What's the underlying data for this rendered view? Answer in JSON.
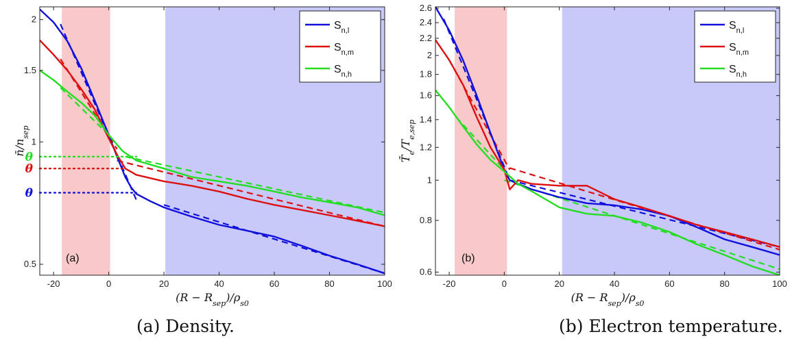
{
  "chart_data": [
    {
      "id": "a",
      "type": "line",
      "panel_label": "(a)",
      "caption": "(a) Density.",
      "xlabel": "(R − R_sep)/ρ_s0",
      "ylabel": "n̄/n_sep",
      "yscale": "log",
      "xlim": [
        -25,
        100
      ],
      "ylim": [
        0.47,
        2.15
      ],
      "xticks": [
        -20,
        0,
        20,
        40,
        60,
        80,
        100
      ],
      "xtick_labels": [
        "-20",
        "0",
        "20",
        "40",
        "60",
        "80",
        "100"
      ],
      "yticks": [
        0.5,
        1,
        1.5,
        2
      ],
      "ytick_labels": [
        "0.5",
        "1",
        "1.5",
        "2"
      ],
      "shaded_regions": [
        {
          "x": [
            -17,
            0.5
          ],
          "color": "#f9c9c9"
        },
        {
          "x": [
            20.5,
            100
          ],
          "color": "#c9c9f9"
        }
      ],
      "legend": {
        "position": "top-right",
        "entries": [
          "S_n,l",
          "S_n,m",
          "S_n,h"
        ]
      },
      "series": [
        {
          "name": "S_n,l",
          "color": "#1010dd",
          "x": [
            -25,
            -20,
            -15,
            -10,
            -5,
            0,
            3,
            6,
            8,
            10,
            15,
            20,
            30,
            40,
            50,
            60,
            70,
            80,
            90,
            100
          ],
          "y": [
            2.12,
            1.97,
            1.77,
            1.52,
            1.26,
            1.04,
            0.92,
            0.82,
            0.775,
            0.745,
            0.715,
            0.69,
            0.655,
            0.625,
            0.605,
            0.585,
            0.555,
            0.525,
            0.5,
            0.475
          ]
        },
        {
          "name": "S_n,m",
          "color": "#dd1010",
          "x": [
            -25,
            -20,
            -15,
            -10,
            -5,
            0,
            3,
            6,
            10,
            20,
            30,
            40,
            50,
            60,
            70,
            80,
            90,
            100
          ],
          "y": [
            1.78,
            1.64,
            1.5,
            1.35,
            1.2,
            1.02,
            0.93,
            0.86,
            0.83,
            0.8,
            0.78,
            0.755,
            0.725,
            0.7,
            0.68,
            0.66,
            0.64,
            0.62
          ]
        },
        {
          "name": "S_n,h",
          "color": "#22dd22",
          "x": [
            -25,
            -20,
            -15,
            -10,
            -5,
            0,
            5,
            10,
            20,
            30,
            40,
            50,
            60,
            70,
            80,
            90,
            100
          ],
          "y": [
            1.5,
            1.42,
            1.33,
            1.25,
            1.16,
            1.04,
            0.95,
            0.9,
            0.86,
            0.82,
            0.8,
            0.78,
            0.755,
            0.73,
            0.71,
            0.69,
            0.66
          ]
        }
      ],
      "fit_lines": [
        {
          "series": "S_n,l",
          "color": "#1010dd",
          "x": [
            -17.5,
            10
          ],
          "y": [
            1.95,
            0.72
          ]
        },
        {
          "series": "S_n,l",
          "color": "#1010dd",
          "x": [
            20,
            100
          ],
          "y": [
            0.7,
            0.475
          ]
        },
        {
          "series": "S_n,m",
          "color": "#dd1010",
          "x": [
            -17.5,
            3
          ],
          "y": [
            1.6,
            0.96
          ]
        },
        {
          "series": "S_n,m",
          "color": "#dd1010",
          "x": [
            3,
            100
          ],
          "y": [
            0.9,
            0.62
          ]
        },
        {
          "series": "S_n,h",
          "color": "#22dd22",
          "x": [
            -17.5,
            0
          ],
          "y": [
            1.36,
            1.04
          ]
        },
        {
          "series": "S_n,h",
          "color": "#22dd22",
          "x": [
            6,
            100
          ],
          "y": [
            0.92,
            0.67
          ]
        }
      ],
      "theta_markers": [
        {
          "label": "θ",
          "color": "#22dd22",
          "y": 0.92,
          "x_end": 10
        },
        {
          "label": "θ",
          "color": "#dd1010",
          "y": 0.86,
          "x_end": 6
        },
        {
          "label": "θ",
          "color": "#1010dd",
          "y": 0.75,
          "x_end": 10
        }
      ]
    },
    {
      "id": "b",
      "type": "line",
      "panel_label": "(b)",
      "caption": "(b) Electron temperature.",
      "xlabel": "(R − R_sep)/ρ_s0",
      "ylabel": "T̄_e/T_e,sep",
      "yscale": "log",
      "xlim": [
        -25,
        100
      ],
      "ylim": [
        0.59,
        2.62
      ],
      "xticks": [
        -20,
        0,
        20,
        40,
        60,
        80,
        100
      ],
      "xtick_labels": [
        "-20",
        "0",
        "20",
        "40",
        "60",
        "80",
        "100"
      ],
      "yticks": [
        0.6,
        0.8,
        1,
        1.2,
        1.4,
        1.6,
        1.8,
        2,
        2.2,
        2.4,
        2.6
      ],
      "ytick_labels": [
        "0.6",
        "0.8",
        "1",
        "1.2",
        "1.4",
        "1.6",
        "1.8",
        "2",
        "2.2",
        "2.4",
        "2.6"
      ],
      "shaded_regions": [
        {
          "x": [
            -18,
            1
          ],
          "color": "#f9c9c9"
        },
        {
          "x": [
            21,
            100
          ],
          "color": "#c9c9f9"
        }
      ],
      "legend": {
        "position": "top-right",
        "entries": [
          "S_n,l",
          "S_n,m",
          "S_n,h"
        ]
      },
      "series": [
        {
          "name": "S_n,l",
          "color": "#1010dd",
          "x": [
            -25,
            -20,
            -15,
            -10,
            -5,
            0,
            2,
            5,
            10,
            20,
            30,
            40,
            50,
            60,
            70,
            80,
            90,
            100
          ],
          "y": [
            2.62,
            2.3,
            1.95,
            1.6,
            1.3,
            1.06,
            1.0,
            0.98,
            0.95,
            0.91,
            0.88,
            0.87,
            0.85,
            0.82,
            0.77,
            0.72,
            0.69,
            0.66
          ]
        },
        {
          "name": "S_n,m",
          "color": "#dd1010",
          "x": [
            -25,
            -20,
            -15,
            -10,
            -5,
            0,
            2,
            5,
            10,
            20,
            30,
            40,
            50,
            60,
            70,
            80,
            90,
            100
          ],
          "y": [
            2.18,
            1.95,
            1.7,
            1.42,
            1.2,
            1.06,
            0.95,
            1.0,
            0.98,
            0.97,
            0.97,
            0.9,
            0.86,
            0.82,
            0.78,
            0.75,
            0.72,
            0.69
          ]
        },
        {
          "name": "S_n,h",
          "color": "#22dd22",
          "x": [
            -25,
            -20,
            -15,
            -10,
            -5,
            0,
            5,
            10,
            20,
            30,
            40,
            50,
            60,
            70,
            80,
            90,
            100
          ],
          "y": [
            1.65,
            1.5,
            1.35,
            1.22,
            1.12,
            1.05,
            0.98,
            0.94,
            0.86,
            0.83,
            0.82,
            0.79,
            0.75,
            0.7,
            0.66,
            0.62,
            0.59
          ]
        }
      ],
      "fit_lines": [
        {
          "series": "S_n,l",
          "color": "#1010dd",
          "x": [
            -22,
            2
          ],
          "y": [
            2.45,
            1.0
          ]
        },
        {
          "series": "S_n,l",
          "color": "#1010dd",
          "x": [
            2,
            100
          ],
          "y": [
            1.0,
            0.69
          ]
        },
        {
          "series": "S_n,m",
          "color": "#dd1010",
          "x": [
            -20,
            2
          ],
          "y": [
            1.95,
            1.06
          ]
        },
        {
          "series": "S_n,m",
          "color": "#dd1010",
          "x": [
            2,
            100
          ],
          "y": [
            1.07,
            0.68
          ]
        },
        {
          "series": "S_n,h",
          "color": "#22dd22",
          "x": [
            -17.5,
            0
          ],
          "y": [
            1.42,
            1.06
          ]
        },
        {
          "series": "S_n,h",
          "color": "#22dd22",
          "x": [
            0,
            100
          ],
          "y": [
            1.0,
            0.61
          ]
        }
      ],
      "theta_markers": []
    }
  ]
}
